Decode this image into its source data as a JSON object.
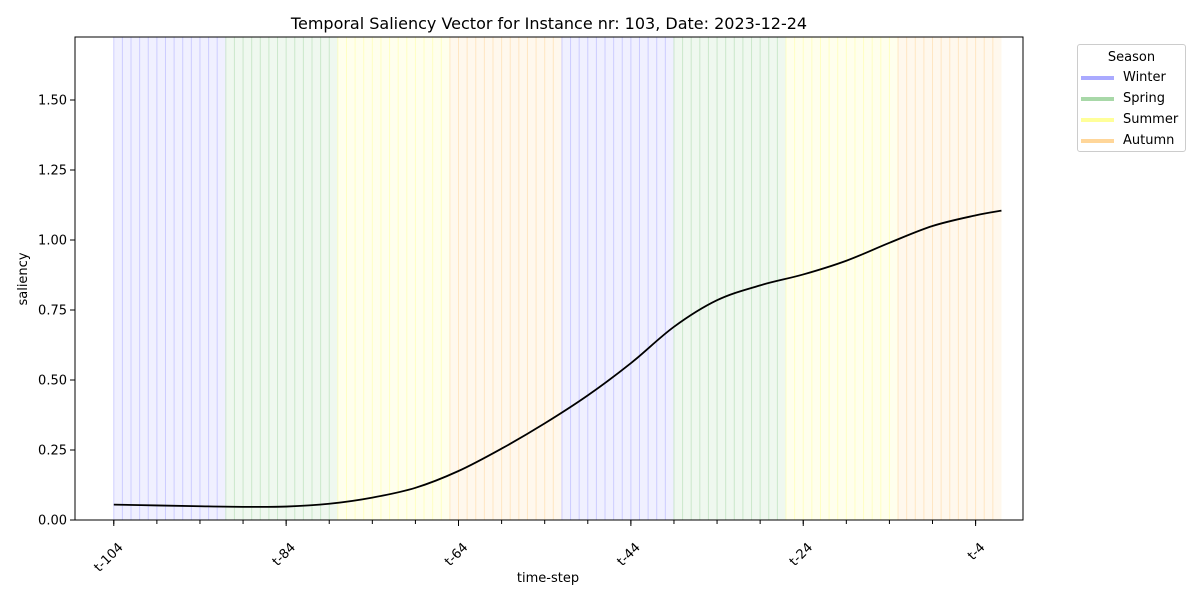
{
  "chart_data": {
    "type": "line",
    "title": "Temporal Saliency Vector for Instance nr: 103, Date: 2023-12-24",
    "xlabel": "time-step",
    "ylabel": "saliency",
    "x_ticks": [
      "t-104",
      "t-84",
      "t-64",
      "t-44",
      "t-24",
      "t-4"
    ],
    "x_tick_steps": [
      104,
      84,
      64,
      44,
      24,
      4
    ],
    "x_range_steps": [
      108.5,
      -1.5
    ],
    "y_ticks": [
      "0.00",
      "0.25",
      "0.50",
      "0.75",
      "1.00",
      "1.25",
      "1.50"
    ],
    "ylim": [
      0,
      1.725
    ],
    "grid": false,
    "legend": {
      "title": "Season",
      "placement": "outside-top-right",
      "entries": [
        {
          "label": "Winter",
          "color": "#aaaaff"
        },
        {
          "label": "Spring",
          "color": "#a8d8a8"
        },
        {
          "label": "Summer",
          "color": "#ffff99"
        },
        {
          "label": "Autumn",
          "color": "#ffd699"
        }
      ]
    },
    "season_bands": [
      {
        "season": "Winter",
        "from_step": 104,
        "to_step": 91,
        "color": "#aaaaff"
      },
      {
        "season": "Spring",
        "from_step": 91,
        "to_step": 78,
        "color": "#a8d8a8"
      },
      {
        "season": "Summer",
        "from_step": 78,
        "to_step": 65,
        "color": "#ffff99"
      },
      {
        "season": "Autumn",
        "from_step": 65,
        "to_step": 52,
        "color": "#ffd699"
      },
      {
        "season": "Winter",
        "from_step": 52,
        "to_step": 39,
        "color": "#aaaaff"
      },
      {
        "season": "Spring",
        "from_step": 39,
        "to_step": 26,
        "color": "#a8d8a8"
      },
      {
        "season": "Summer",
        "from_step": 26,
        "to_step": 13,
        "color": "#ffff99"
      },
      {
        "season": "Autumn",
        "from_step": 13,
        "to_step": 1,
        "color": "#ffd699"
      }
    ],
    "series": [
      {
        "color": "#000000",
        "x_steps": [
          104,
          99,
          94,
          89,
          84,
          79,
          74,
          69,
          64,
          59,
          54,
          49,
          44,
          39,
          34,
          29,
          24,
          19,
          14,
          9,
          4,
          1
        ],
        "values": [
          0.055,
          0.052,
          0.049,
          0.047,
          0.048,
          0.058,
          0.08,
          0.115,
          0.175,
          0.255,
          0.345,
          0.445,
          0.56,
          0.69,
          0.785,
          0.838,
          0.877,
          0.926,
          0.99,
          1.05,
          1.088,
          1.105
        ]
      }
    ]
  }
}
